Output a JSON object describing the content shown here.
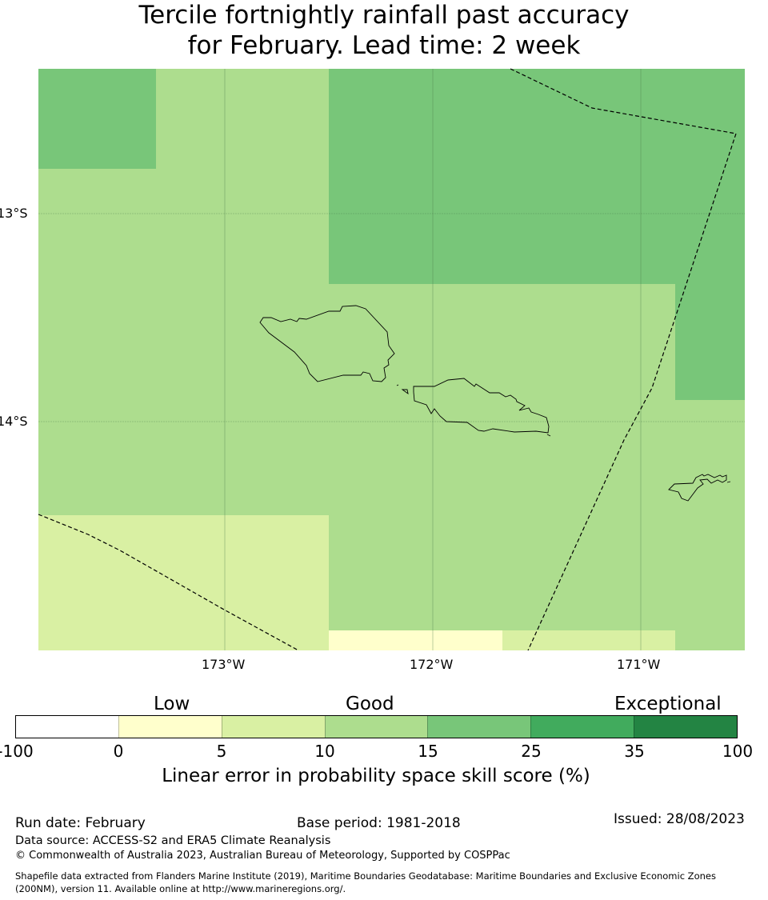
{
  "title": [
    "Tercile fortnightly rainfall past accuracy",
    "for February. Lead time: 2 week"
  ],
  "map": {
    "lat_labels": [
      "13°S",
      "14°S"
    ],
    "lon_labels": [
      "173°W",
      "172°W",
      "171°W"
    ],
    "colors": {
      "c0_5": "#ffffcc",
      "c5_10": "#d9f0a3",
      "c10_15": "#addd8e",
      "c15_25": "#78c679"
    }
  },
  "colorbar": {
    "categories": [
      "Low",
      "Good",
      "Exceptional"
    ],
    "ticks": [
      "-100",
      "0",
      "5",
      "10",
      "15",
      "25",
      "35",
      "100"
    ],
    "colors": [
      "#ffffff",
      "#ffffcc",
      "#d9f0a3",
      "#addd8e",
      "#78c679",
      "#41ab5d",
      "#238443"
    ],
    "label": "Linear error in probability space skill score (%)"
  },
  "footer": {
    "run_date": "Run date: February",
    "base_period": "Base period: 1981-2018",
    "issued": "Issued: 28/08/2023",
    "data_source": "Data source: ACCESS-S2 and ERA5 Climate Reanalysis",
    "copyright": "© Commonwealth of Australia 2023, Australian Bureau of Meteorology, Supported by COSPPac",
    "shapefile_1": "Shapefile data extracted from Flanders Marine Institute (2019), Maritime Boundaries Geodatabase: Maritime Boundaries and Exclusive Economic Zones",
    "shapefile_2": "(200NM), version 11. Available online at http://www.marineregions.org/."
  }
}
